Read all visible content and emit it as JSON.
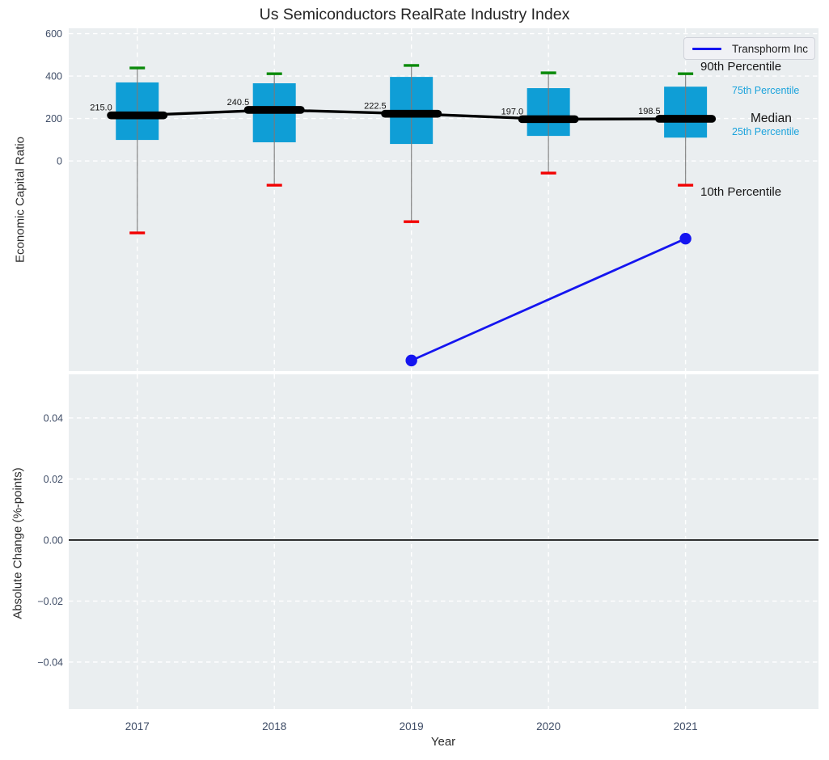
{
  "title": "Us Semiconductors RealRate Industry Index",
  "colors": {
    "plot_background": "#eaeef0",
    "gridline": "#ffffff",
    "box_fill": "#0f9ed6",
    "cap_90th": "#0a8a0a",
    "cap_10th": "#f20000",
    "median_line": "#000000",
    "whisker": "#7a7a7a",
    "series_line": "#1515f0",
    "accent_text": "#1ba3dc",
    "dark_text": "#161616",
    "tick_text": "#3e4c66",
    "zero_line": "#000000"
  },
  "x_axis": {
    "label": "Year",
    "ticks": [
      "2017",
      "2018",
      "2019",
      "2020",
      "2021"
    ]
  },
  "chart_data": [
    {
      "type": "boxplot+line",
      "ylabel": "Economic Capital Ratio",
      "yticks": [
        600,
        400,
        200,
        0
      ],
      "ylim": [
        -990,
        625
      ],
      "xlim": [
        2016.5,
        2021.97
      ],
      "grid": true,
      "categories": [
        2017,
        2018,
        2019,
        2020,
        2021
      ],
      "boxes": [
        {
          "year": 2017,
          "p90": 438,
          "p75": 370,
          "median": 215.0,
          "p25": 99,
          "p10": -339,
          "median_label": "215.0"
        },
        {
          "year": 2018,
          "p90": 411,
          "p75": 366,
          "median": 240.5,
          "p25": 88,
          "p10": -114,
          "median_label": "240.5"
        },
        {
          "year": 2019,
          "p90": 450,
          "p75": 396,
          "median": 222.5,
          "p25": 80,
          "p10": -286,
          "median_label": "222.5"
        },
        {
          "year": 2020,
          "p90": 415,
          "p75": 343,
          "median": 197.0,
          "p25": 118,
          "p10": -57,
          "median_label": "197.0"
        },
        {
          "year": 2021,
          "p90": 411,
          "p75": 350,
          "median": 198.5,
          "p25": 110,
          "p10": -114,
          "median_label": "198.5"
        }
      ],
      "series": [
        {
          "name": "Transphorm Inc",
          "points": [
            {
              "x": 2019,
              "y": -940
            },
            {
              "x": 2021,
              "y": -366
            }
          ]
        }
      ],
      "legend": {
        "position": "upper right"
      },
      "annotations": [
        {
          "id": "p90",
          "label": "90th Percentile"
        },
        {
          "id": "p75",
          "label": "75th Percentile"
        },
        {
          "id": "median",
          "label": "Median"
        },
        {
          "id": "p25",
          "label": "25th Percentile"
        },
        {
          "id": "p10",
          "label": "10th Percentile"
        }
      ]
    },
    {
      "type": "line",
      "ylabel": "Absolute Change (%-points)",
      "yticks": [
        0.04,
        0.02,
        0,
        -0.02,
        -0.04
      ],
      "ytick_labels": [
        "0.04",
        "0.02",
        "0.00",
        "−0.02",
        "−0.04"
      ],
      "ylim": [
        -0.0554,
        0.0543
      ],
      "grid": true,
      "zero_line": 0.0,
      "series": []
    }
  ]
}
